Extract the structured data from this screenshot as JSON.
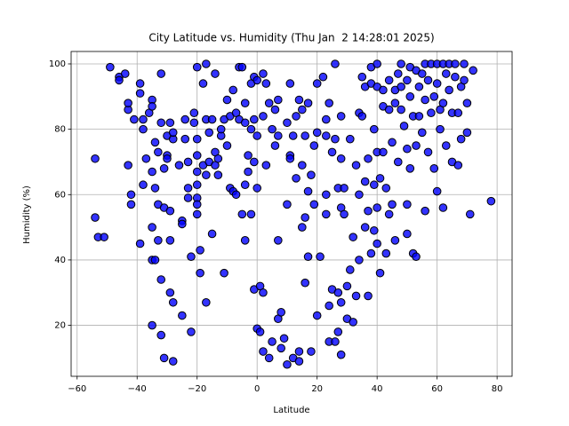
{
  "chart_data": {
    "type": "scatter",
    "title": "City Latitude vs. Humidity (Thu Jan  2 14:28:01 2025)",
    "x_label": "Latitude",
    "y_label": "Humidity (%)",
    "color": "#0000ff",
    "grid": true,
    "xlim": [
      -62,
      85
    ],
    "ylim": [
      4.4,
      103.8
    ],
    "xticks": [
      {
        "value": -60,
        "label": "−60"
      },
      {
        "value": -40,
        "label": "−40"
      },
      {
        "value": -20,
        "label": "−20"
      },
      0,
      20,
      40,
      60,
      80
    ],
    "yticks": [
      20,
      40,
      60,
      80,
      100
    ],
    "x": [
      -54,
      -54,
      -53,
      -51,
      -49,
      -46,
      -46,
      -44,
      -43,
      -43,
      -43,
      -42,
      -42,
      -41,
      -39,
      -39,
      -39,
      -38,
      -38,
      -38,
      -37,
      -36,
      -35,
      -35,
      -35,
      -35,
      -35,
      -35,
      -34,
      -34,
      -34,
      -33,
      -33,
      -33,
      -32,
      -32,
      -32,
      -32,
      -31,
      -31,
      -31,
      -30,
      -30,
      -30,
      -29,
      -29,
      -29,
      -29,
      -28,
      -28,
      -28,
      -28,
      -26,
      -25,
      -25,
      -25,
      -24,
      -24,
      -23,
      -23,
      -23,
      -22,
      -22,
      -21,
      -21,
      -20,
      -20,
      -20,
      -20,
      -20,
      -20,
      -20,
      -20,
      -19,
      -19,
      -18,
      -18,
      -17,
      -17,
      -17,
      -17,
      -16,
      -16,
      -15,
      -15,
      -14,
      -14,
      -14,
      -13,
      -13,
      -12,
      -12,
      -11,
      -11,
      -10,
      -10,
      -9,
      -9,
      -8,
      -8,
      -7,
      -7,
      -6,
      -6,
      -5,
      -5,
      -4,
      -4,
      -4,
      -4,
      -3,
      -3,
      -2,
      -2,
      -2,
      -1,
      -1,
      -1,
      -1,
      0,
      0,
      0,
      0,
      1,
      1,
      2,
      2,
      2,
      2,
      3,
      3,
      4,
      4,
      5,
      5,
      6,
      6,
      7,
      7,
      7,
      7,
      8,
      8,
      9,
      10,
      10,
      10,
      11,
      11,
      11,
      12,
      12,
      13,
      13,
      14,
      14,
      14,
      15,
      15,
      15,
      16,
      16,
      16,
      17,
      17,
      17,
      18,
      18,
      19,
      19,
      20,
      20,
      20,
      21,
      22,
      23,
      23,
      23,
      23,
      24,
      24,
      24,
      25,
      25,
      26,
      26,
      26,
      27,
      27,
      27,
      28,
      28,
      28,
      28,
      28,
      29,
      29,
      30,
      30,
      31,
      31,
      32,
      32,
      33,
      33,
      34,
      34,
      34,
      35,
      35,
      36,
      36,
      36,
      37,
      37,
      37,
      38,
      38,
      38,
      39,
      39,
      39,
      40,
      40,
      40,
      40,
      40,
      41,
      41,
      42,
      42,
      42,
      43,
      43,
      44,
      44,
      44,
      45,
      45,
      46,
      46,
      46,
      47,
      47,
      48,
      48,
      48,
      49,
      50,
      50,
      50,
      50,
      51,
      51,
      51,
      52,
      52,
      53,
      53,
      53,
      54,
      54,
      55,
      55,
      56,
      56,
      56,
      57,
      57,
      58,
      58,
      59,
      59,
      60,
      60,
      60,
      61,
      61,
      62,
      62,
      62,
      63,
      63,
      64,
      64,
      65,
      65,
      66,
      66,
      67,
      67,
      68,
      68,
      69,
      69,
      70,
      70,
      71,
      72,
      78
    ],
    "values": [
      71,
      53,
      47,
      47,
      99,
      96,
      95,
      97,
      86,
      88,
      69,
      60,
      57,
      83,
      91,
      94,
      45,
      83,
      80,
      63,
      71,
      85,
      89,
      87,
      67,
      50,
      40,
      20,
      40,
      62,
      76,
      73,
      57,
      46,
      97,
      82,
      34,
      17,
      68,
      56,
      10,
      78,
      72,
      71,
      82,
      55,
      46,
      30,
      27,
      9,
      77,
      79,
      69,
      52,
      51,
      23,
      83,
      77,
      70,
      62,
      59,
      41,
      18,
      82,
      85,
      77,
      99,
      72,
      67,
      63,
      59,
      57,
      54,
      43,
      36,
      69,
      94,
      83,
      100,
      27,
      66,
      70,
      79,
      83,
      48,
      97,
      69,
      73,
      71,
      66,
      78,
      80,
      36,
      83,
      75,
      89,
      84,
      62,
      92,
      61,
      85,
      60,
      99,
      83,
      99,
      54,
      82,
      88,
      63,
      46,
      67,
      72,
      94,
      80,
      54,
      96,
      83,
      70,
      31,
      95,
      78,
      62,
      19,
      32,
      18,
      97,
      84,
      30,
      12,
      94,
      69,
      88,
      10,
      80,
      15,
      86,
      75,
      89,
      78,
      22,
      46,
      24,
      13,
      16,
      82,
      57,
      8,
      94,
      72,
      71,
      78,
      10,
      65,
      84,
      89,
      12,
      9,
      86,
      50,
      69,
      53,
      33,
      78,
      61,
      88,
      41,
      12,
      66,
      75,
      57,
      94,
      23,
      79,
      41,
      96,
      78,
      60,
      54,
      83,
      88,
      26,
      15,
      73,
      31,
      100,
      77,
      15,
      30,
      18,
      62,
      84,
      71,
      56,
      27,
      11,
      54,
      62,
      22,
      32,
      77,
      37,
      21,
      47,
      69,
      29,
      85,
      60,
      40,
      96,
      84,
      93,
      64,
      50,
      55,
      29,
      71,
      99,
      42,
      94,
      80,
      63,
      49,
      93,
      100,
      73,
      56,
      45,
      36,
      65,
      92,
      87,
      73,
      42,
      62,
      86,
      95,
      54,
      76,
      57,
      92,
      88,
      46,
      97,
      70,
      100,
      93,
      86,
      81,
      95,
      74,
      57,
      48,
      99,
      90,
      68,
      42,
      84,
      98,
      41,
      75,
      93,
      84,
      97,
      79,
      100,
      89,
      55,
      95,
      73,
      100,
      85,
      68,
      90,
      100,
      61,
      94,
      86,
      80,
      56,
      100,
      88,
      97,
      75,
      100,
      92,
      70,
      85,
      100,
      96,
      69,
      85,
      93,
      77,
      100,
      95,
      88,
      79,
      54,
      98,
      58
    ]
  }
}
